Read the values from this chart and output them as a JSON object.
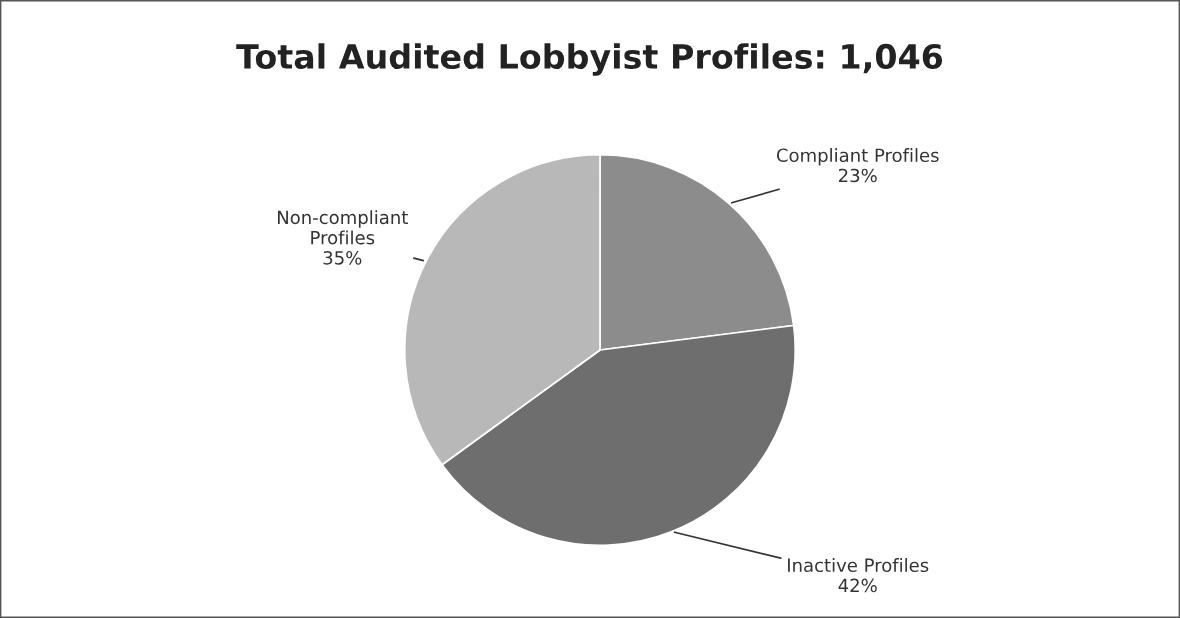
{
  "chart_data": {
    "type": "pie",
    "title": "Total Audited Lobbyist Profiles: 1,046",
    "categories": [
      "Compliant Profiles",
      "Inactive Profiles",
      "Non-compliant\nProfiles"
    ],
    "values": [
      23,
      42,
      35
    ],
    "value_labels": [
      "23%",
      "42%",
      "35%"
    ],
    "colors": [
      "#8c8c8c",
      "#6e6e6e",
      "#b8b8b8"
    ]
  }
}
